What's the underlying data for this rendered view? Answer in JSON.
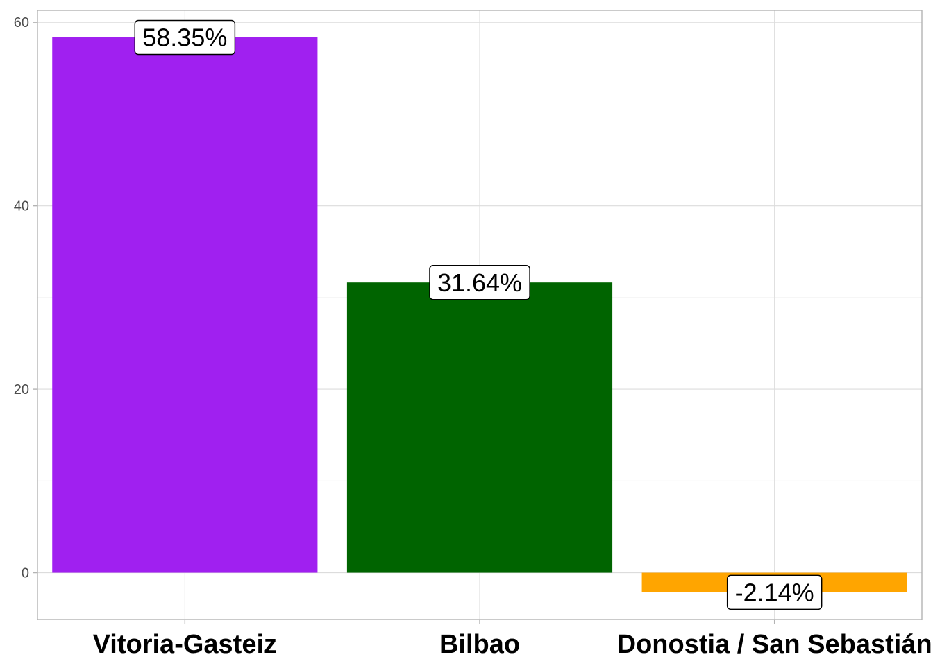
{
  "chart_data": {
    "type": "bar",
    "categories": [
      "Vitoria-Gasteiz",
      "Bilbao",
      "Donostia / San Sebastián"
    ],
    "values": [
      58.35,
      31.64,
      -2.14
    ],
    "data_labels": [
      "58.35%",
      "31.64%",
      "-2.14%"
    ],
    "colors": [
      "#a020f0",
      "#006400",
      "#ffa500"
    ],
    "title": "",
    "xlabel": "",
    "ylabel": "",
    "ylim": [
      -5.1,
      61.3
    ],
    "yticks": [
      0,
      20,
      40,
      60
    ],
    "ytick_labels": [
      "0",
      "20",
      "40",
      "60"
    ],
    "grid": true,
    "legend": "none"
  }
}
